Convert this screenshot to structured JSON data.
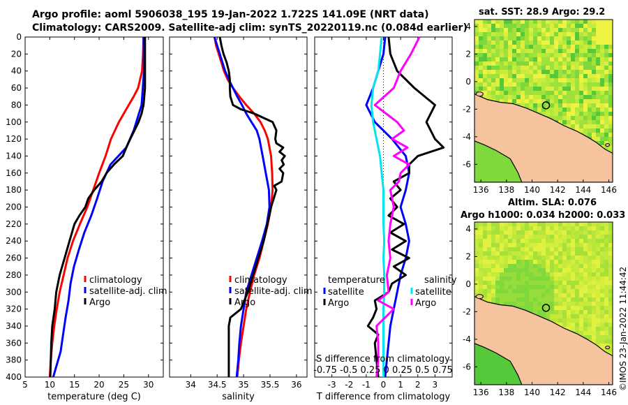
{
  "title_line1": "Argo profile: aoml 5906038_195 19-Jan-2022 1.722S 141.09E (NRT data)",
  "title_line2": "Climatology: CARS2009. Satellite-adj clim: synTS_20220119.nc (0.084d earlier)",
  "copyright": "©IMOS 23-Jan-2022 11:44:42",
  "colors": {
    "climatology": "#ff0000",
    "satellite": "#0000ff",
    "argo": "#000000",
    "sal_satellite": "#00e5ee",
    "sal_argo": "#ff00ff",
    "land": "#f5c39e"
  },
  "chart_data": [
    {
      "type": "line",
      "id": "temperature",
      "xlabel": "temperature (deg C)",
      "ylabel": "",
      "xlim": [
        5,
        33
      ],
      "ylim": [
        400,
        0
      ],
      "xticks": [
        5,
        10,
        15,
        20,
        25,
        30
      ],
      "yticks": [
        0,
        20,
        40,
        60,
        80,
        100,
        120,
        140,
        160,
        180,
        200,
        220,
        240,
        260,
        280,
        300,
        320,
        340,
        360,
        380,
        400
      ],
      "legend": {
        "entries": [
          "climatology",
          "satellite-adj. clim",
          "Argo"
        ]
      },
      "series": [
        {
          "name": "climatology",
          "color": "#ff0000",
          "depth": [
            0,
            20,
            40,
            60,
            70,
            80,
            90,
            100,
            120,
            140,
            160,
            180,
            200,
            220,
            240,
            260,
            280,
            300,
            320,
            340,
            360,
            380,
            400
          ],
          "values": [
            29.0,
            28.9,
            28.7,
            27.9,
            27.0,
            26.0,
            25.0,
            24.0,
            22.4,
            21.3,
            20.0,
            18.8,
            17.6,
            16.1,
            14.7,
            13.6,
            12.8,
            12.0,
            11.4,
            10.9,
            10.5,
            10.2,
            10.0
          ]
        },
        {
          "name": "satellite-adj. clim",
          "color": "#0000ff",
          "depth": [
            0,
            40,
            80,
            110,
            130,
            150,
            170,
            190,
            210,
            230,
            250,
            270,
            290,
            310,
            330,
            350,
            370,
            390,
            400
          ],
          "values": [
            29.0,
            29.1,
            28.6,
            27.0,
            25.5,
            22.3,
            20.7,
            19.6,
            18.4,
            17.0,
            15.9,
            14.9,
            14.2,
            13.8,
            13.2,
            12.7,
            12.2,
            11.2,
            10.7
          ]
        },
        {
          "name": "Argo",
          "color": "#000000",
          "depth": [
            0,
            20,
            40,
            60,
            80,
            90,
            100,
            120,
            130,
            140,
            150,
            160,
            170,
            180,
            190,
            200,
            210,
            220,
            240,
            260,
            280,
            300,
            320,
            340,
            360,
            380,
            400
          ],
          "values": [
            29.3,
            29.3,
            29.3,
            29.3,
            29.0,
            28.6,
            28.0,
            26.3,
            25.5,
            24.8,
            23.0,
            21.5,
            20.5,
            19.0,
            17.8,
            17.2,
            16.0,
            15.0,
            14.0,
            13.0,
            12.0,
            11.3,
            11.0,
            10.5,
            10.3,
            10.2,
            10.1
          ]
        }
      ]
    },
    {
      "type": "line",
      "id": "salinity",
      "xlabel": "salinity",
      "xlim": [
        33.6,
        36.2
      ],
      "ylim": [
        400,
        0
      ],
      "xticks": [
        34,
        34.5,
        35,
        35.5,
        36
      ],
      "legend": {
        "entries": [
          "climatology",
          "satellite-adj. clim",
          "Argo"
        ]
      },
      "series": [
        {
          "name": "climatology",
          "color": "#ff0000",
          "depth": [
            0,
            10,
            20,
            30,
            40,
            50,
            60,
            70,
            80,
            90,
            100,
            110,
            120,
            140,
            160,
            180,
            200,
            220,
            240,
            260,
            280,
            300,
            320,
            340,
            360,
            380,
            400
          ],
          "values": [
            34.45,
            34.48,
            34.53,
            34.58,
            34.63,
            34.7,
            34.8,
            34.92,
            35.05,
            35.2,
            35.32,
            35.4,
            35.46,
            35.52,
            35.54,
            35.55,
            35.52,
            35.46,
            35.38,
            35.3,
            35.2,
            35.12,
            35.05,
            35.0,
            34.95,
            34.91,
            34.88
          ]
        },
        {
          "name": "satellite-adj. clim",
          "color": "#0000ff",
          "depth": [
            0,
            10,
            20,
            30,
            40,
            50,
            60,
            70,
            80,
            90,
            100,
            110,
            120,
            140,
            160,
            180,
            200,
            220,
            240,
            260,
            280,
            300,
            320,
            340,
            360,
            380,
            400
          ],
          "values": [
            34.45,
            34.5,
            34.55,
            34.6,
            34.65,
            34.72,
            34.8,
            34.88,
            34.97,
            35.05,
            35.15,
            35.25,
            35.3,
            35.36,
            35.42,
            35.48,
            35.49,
            35.44,
            35.35,
            35.25,
            35.15,
            35.05,
            35.0,
            34.95,
            34.92,
            34.9,
            34.87
          ]
        },
        {
          "name": "Argo",
          "color": "#000000",
          "depth": [
            0,
            10,
            20,
            30,
            40,
            50,
            60,
            70,
            80,
            85,
            90,
            100,
            110,
            120,
            125,
            130,
            135,
            140,
            145,
            150,
            155,
            160,
            170,
            175,
            180,
            200,
            220,
            240,
            260,
            280,
            300,
            320,
            330,
            340,
            360,
            380,
            400
          ],
          "values": [
            34.55,
            34.58,
            34.62,
            34.68,
            34.72,
            34.74,
            34.74,
            34.75,
            34.8,
            34.95,
            35.2,
            35.55,
            35.62,
            35.6,
            35.62,
            35.75,
            35.68,
            35.78,
            35.72,
            35.76,
            35.68,
            35.75,
            35.72,
            35.58,
            35.62,
            35.52,
            35.45,
            35.38,
            35.28,
            35.18,
            35.08,
            34.95,
            34.75,
            34.72,
            34.72,
            34.72,
            34.72
          ]
        }
      ]
    },
    {
      "type": "line",
      "id": "difference",
      "xlabel": "T difference from climatology",
      "xlabel_top": "S difference from climatology",
      "xlim": [
        -4,
        4
      ],
      "ylim": [
        400,
        0
      ],
      "xticks": [
        -3,
        -2,
        -1,
        0,
        1,
        2,
        3
      ],
      "s_ticklabels": "-0.75 -0.5 0.25 0  0.25 0.5 0.75",
      "legend": {
        "temperature_header": "temperature",
        "salinity_header": "salinity",
        "temperature_entries": [
          "satellite",
          "Argo"
        ],
        "salinity_entries": [
          "satellite",
          "Argo"
        ]
      },
      "series": [
        {
          "name": "T satellite",
          "color": "#0000ff",
          "depth": [
            0,
            20,
            60,
            80,
            100,
            120,
            140,
            160,
            180,
            200,
            220,
            240,
            260,
            280,
            300,
            320,
            340,
            360,
            380,
            400
          ],
          "values": [
            0.1,
            0.0,
            -0.6,
            -1.0,
            -0.5,
            0.5,
            1.3,
            1.5,
            1.3,
            1.0,
            1.3,
            1.5,
            1.3,
            1.0,
            0.8,
            0.6,
            0.4,
            0.3,
            0.2,
            0.1
          ]
        },
        {
          "name": "T Argo",
          "color": "#000000",
          "depth": [
            0,
            20,
            40,
            60,
            80,
            100,
            120,
            130,
            140,
            150,
            160,
            170,
            180,
            190,
            200,
            210,
            220,
            230,
            240,
            250,
            260,
            270,
            280,
            290,
            300,
            310,
            320,
            330,
            340,
            350,
            360,
            380,
            400
          ],
          "values": [
            0.3,
            0.4,
            0.8,
            1.8,
            3.0,
            2.5,
            3.0,
            3.5,
            2.0,
            1.5,
            1.5,
            0.6,
            1.0,
            0.4,
            0.8,
            0.3,
            1.2,
            0.4,
            1.3,
            0.5,
            1.5,
            0.6,
            1.3,
            0.5,
            0.3,
            -0.5,
            -0.4,
            -0.6,
            -0.9,
            -0.3,
            -0.5,
            -0.4,
            -0.3
          ]
        },
        {
          "name": "S satellite",
          "color": "#00e5ee",
          "depth": [
            0,
            20,
            40,
            60,
            80,
            100,
            120,
            140,
            160,
            180,
            200,
            220,
            240,
            260,
            280,
            300,
            320,
            340,
            360,
            380,
            400
          ],
          "values": [
            -0.1,
            -0.2,
            -0.3,
            -0.6,
            -0.7,
            -0.6,
            -0.4,
            -0.2,
            -0.1,
            0.0,
            0.0,
            0.0,
            0.05,
            0.0,
            0.05,
            0.05,
            0.0,
            0.0,
            0.0,
            0.0,
            0.0
          ]
        },
        {
          "name": "S Argo",
          "color": "#ff00ff",
          "depth": [
            0,
            20,
            40,
            60,
            80,
            100,
            110,
            120,
            130,
            140,
            150,
            160,
            170,
            180,
            200,
            220,
            240,
            260,
            280,
            300,
            310,
            320,
            340,
            360,
            380,
            400
          ],
          "values": [
            2.1,
            1.6,
            1.0,
            0.6,
            -0.5,
            0.8,
            1.2,
            0.5,
            1.4,
            0.6,
            1.5,
            1.0,
            0.9,
            0.4,
            0.6,
            0.4,
            0.3,
            0.4,
            0.2,
            0.3,
            -0.3,
            0.6,
            -0.4,
            -0.3,
            -0.3,
            -0.4
          ]
        }
      ]
    },
    {
      "type": "heatmap",
      "id": "sst_map",
      "title": "sat. SST: 28.9 Argo: 29.2",
      "xticks": [
        136,
        138,
        140,
        142,
        144,
        146
      ],
      "yticks": [
        4,
        2,
        0,
        -2,
        -4,
        -6
      ],
      "xlim": [
        135.5,
        146.3
      ],
      "ylim": [
        -7.3,
        4.5
      ],
      "argo_position": [
        141.09,
        -1.722
      ]
    },
    {
      "type": "heatmap",
      "id": "sla_map",
      "title": "Altim. SLA: 0.076",
      "subtitle": "Argo h1000: 0.034 h2000: 0.033",
      "xticks": [
        136,
        138,
        140,
        142,
        144,
        146
      ],
      "yticks": [
        4,
        2,
        0,
        -2,
        -4,
        -6
      ],
      "xlim": [
        135.5,
        146.3
      ],
      "ylim": [
        -7.3,
        4.5
      ],
      "argo_position": [
        141.09,
        -1.722
      ]
    }
  ]
}
